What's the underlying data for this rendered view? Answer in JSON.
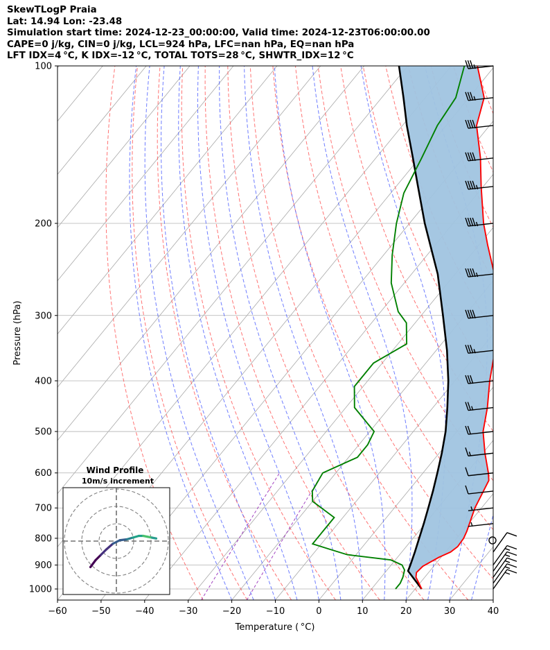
{
  "header": {
    "line1": "SkewTLogP Praia",
    "line2": "Lat: 14.94   Lon: -23.48",
    "line3": "Simulation start time: 2024-12-23_00:00:00, Valid time: 2024-12-23T06:00:00.00",
    "line4": "CAPE=0 j/kg, CIN=0 j/kg, LCL=924 hPa, LFC=nan hPa, EQ=nan hPa",
    "line5": "LFT IDX=4 °C, K IDX=-12 °C, TOTAL TOTS=28 °C, SHWTR_IDX=12 °C"
  },
  "chart_data": {
    "type": "line",
    "subtype": "skew-T log-P diagram",
    "xlabel": "Temperature ( °C)",
    "ylabel": "Pressure (hPa)",
    "xlim": [
      -60,
      40
    ],
    "ylim": [
      1050,
      100
    ],
    "y_scale": "log",
    "x_ticks": [
      "−60",
      "−50",
      "−40",
      "−30",
      "−20",
      "−10",
      "0",
      "10",
      "20",
      "30",
      "40"
    ],
    "y_ticks": [
      "100",
      "200",
      "300",
      "400",
      "500",
      "600",
      "700",
      "800",
      "900",
      "1000"
    ],
    "grid": true,
    "colors": {
      "temperature": "#ff0000",
      "dewpoint": "#008000",
      "parcel": "#000000",
      "cin_area": "#a0c4e0",
      "dry_adiabats": "#ff5a5a",
      "moist_adiabats": "#4a5cff",
      "mixing_ratio": "#a040c0",
      "isotherms": "#a8a8a8"
    },
    "series": [
      {
        "key": "temperature",
        "points": [
          [
            1000,
            21.5
          ],
          [
            975,
            19.8
          ],
          [
            950,
            18
          ],
          [
            930,
            17.2
          ],
          [
            905,
            17.5
          ],
          [
            870,
            19.5
          ],
          [
            850,
            21.2
          ],
          [
            830,
            21.8
          ],
          [
            800,
            21.6
          ],
          [
            775,
            21
          ],
          [
            700,
            18.5
          ],
          [
            620,
            16.5
          ],
          [
            600,
            15
          ],
          [
            550,
            10.5
          ],
          [
            500,
            6
          ],
          [
            450,
            2.5
          ],
          [
            400,
            -2
          ],
          [
            350,
            -6.5
          ],
          [
            300,
            -13
          ],
          [
            250,
            -21
          ],
          [
            220,
            -28
          ],
          [
            200,
            -33
          ],
          [
            170,
            -40.5
          ],
          [
            150,
            -46
          ],
          [
            130,
            -53
          ],
          [
            115,
            -56.5
          ],
          [
            100,
            -64
          ]
        ]
      },
      {
        "key": "dewpoint",
        "points": [
          [
            1000,
            15.5
          ],
          [
            975,
            15.5
          ],
          [
            950,
            15
          ],
          [
            920,
            14
          ],
          [
            900,
            12.5
          ],
          [
            880,
            9
          ],
          [
            860,
            -2
          ],
          [
            840,
            -7
          ],
          [
            820,
            -12
          ],
          [
            790,
            -12
          ],
          [
            770,
            -12
          ],
          [
            730,
            -12
          ],
          [
            680,
            -20
          ],
          [
            650,
            -22
          ],
          [
            600,
            -23
          ],
          [
            560,
            -18
          ],
          [
            530,
            -18
          ],
          [
            500,
            -19
          ],
          [
            450,
            -28
          ],
          [
            410,
            -32
          ],
          [
            370,
            -32
          ],
          [
            340,
            -28
          ],
          [
            310,
            -32
          ],
          [
            295,
            -36
          ],
          [
            260,
            -43
          ],
          [
            230,
            -48
          ],
          [
            200,
            -53
          ],
          [
            175,
            -57
          ],
          [
            150,
            -59.5
          ],
          [
            130,
            -62
          ],
          [
            115,
            -63
          ],
          [
            100,
            -67
          ]
        ]
      },
      {
        "key": "parcel",
        "points": [
          [
            1000,
            21.5
          ],
          [
            924,
            15
          ],
          [
            900,
            14.4
          ],
          [
            850,
            13
          ],
          [
            800,
            11.4
          ],
          [
            750,
            9.7
          ],
          [
            700,
            7.8
          ],
          [
            650,
            5.7
          ],
          [
            600,
            3.3
          ],
          [
            550,
            0.6
          ],
          [
            500,
            -2.6
          ],
          [
            450,
            -6.7
          ],
          [
            400,
            -11.5
          ],
          [
            350,
            -17.5
          ],
          [
            300,
            -25
          ],
          [
            250,
            -34
          ],
          [
            200,
            -46.5
          ],
          [
            170,
            -55
          ],
          [
            150,
            -61.5
          ],
          [
            130,
            -69
          ],
          [
            115,
            -75
          ],
          [
            100,
            -82
          ]
        ]
      }
    ],
    "wind_barbs": [
      {
        "p": 1000,
        "spd_kt": 15,
        "dir": "NE"
      },
      {
        "p": 975,
        "spd_kt": 15,
        "dir": "NE"
      },
      {
        "p": 950,
        "spd_kt": 15,
        "dir": "NE"
      },
      {
        "p": 925,
        "spd_kt": 15,
        "dir": "NE"
      },
      {
        "p": 900,
        "spd_kt": 15,
        "dir": "NE"
      },
      {
        "p": 850,
        "spd_kt": 10,
        "dir": "NE"
      },
      {
        "p": 800,
        "spd_kt": 0,
        "dir": "calm"
      },
      {
        "p": 750,
        "spd_kt": 5,
        "dir": "W"
      },
      {
        "p": 700,
        "spd_kt": 5,
        "dir": "W"
      },
      {
        "p": 650,
        "spd_kt": 10,
        "dir": "W"
      },
      {
        "p": 600,
        "spd_kt": 10,
        "dir": "W"
      },
      {
        "p": 550,
        "spd_kt": 15,
        "dir": "W"
      },
      {
        "p": 500,
        "spd_kt": 20,
        "dir": "W"
      },
      {
        "p": 450,
        "spd_kt": 25,
        "dir": "W"
      },
      {
        "p": 400,
        "spd_kt": 30,
        "dir": "W"
      },
      {
        "p": 350,
        "spd_kt": 35,
        "dir": "W"
      },
      {
        "p": 300,
        "spd_kt": 40,
        "dir": "W"
      },
      {
        "p": 250,
        "spd_kt": 45,
        "dir": "W"
      },
      {
        "p": 200,
        "spd_kt": 45,
        "dir": "W"
      },
      {
        "p": 170,
        "spd_kt": 45,
        "dir": "W"
      },
      {
        "p": 150,
        "spd_kt": 40,
        "dir": "W"
      },
      {
        "p": 130,
        "spd_kt": 40,
        "dir": "W"
      },
      {
        "p": 115,
        "spd_kt": 35,
        "dir": "W"
      },
      {
        "p": 100,
        "spd_kt": 35,
        "dir": "W"
      }
    ],
    "inset": {
      "title": "Wind Profile",
      "subtitle": "10m/s increment",
      "hodograph": [
        [
          -1.5,
          -1.5
        ],
        [
          -1.2,
          -1.1
        ],
        [
          -0.9,
          -0.8
        ],
        [
          -0.6,
          -0.5
        ],
        [
          -0.2,
          -0.15
        ],
        [
          0.2,
          0.05
        ],
        [
          0.6,
          0.1
        ],
        [
          0.95,
          0.2
        ],
        [
          1.3,
          0.3
        ],
        [
          1.55,
          0.3
        ],
        [
          1.8,
          0.25
        ],
        [
          2.05,
          0.2
        ],
        [
          2.3,
          0.15
        ]
      ]
    }
  }
}
